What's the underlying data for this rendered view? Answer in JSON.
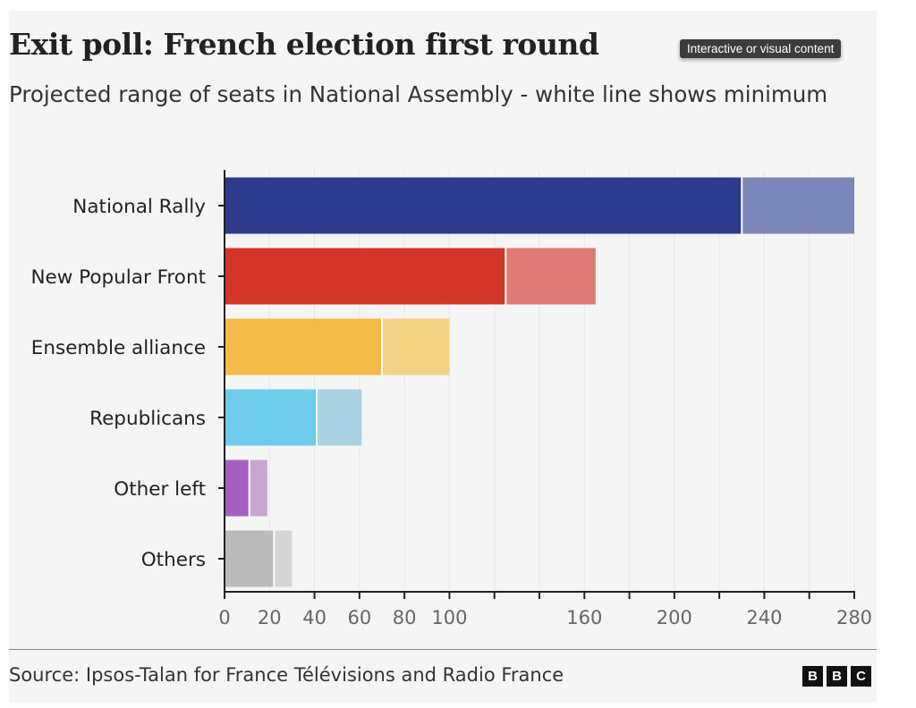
{
  "tooltip": "Interactive or visual content",
  "source": "Source: Ipsos-Talan for France Télévisions and Radio France",
  "logo": [
    "B",
    "B",
    "C"
  ],
  "chart_data": {
    "type": "bar",
    "orientation": "horizontal",
    "stacked_range": true,
    "title": "Exit poll: French election first round",
    "subtitle": "Projected range of seats in National Assembly - white line shows minimum",
    "categories": [
      "National Rally",
      "New Popular Front",
      "Ensemble alliance",
      "Republicans",
      "Other left",
      "Others"
    ],
    "series": [
      {
        "name": "minimum",
        "values": [
          230,
          125,
          70,
          41,
          11,
          22
        ]
      },
      {
        "name": "maximum",
        "values": [
          280,
          165,
          100,
          61,
          19,
          30
        ]
      }
    ],
    "colors_min": [
      "#2e3a8c",
      "#d23629",
      "#f4bb48",
      "#6fcbeb",
      "#a55fbf",
      "#bbbbbb"
    ],
    "colors_max": [
      "#7d86b8",
      "#e07a74",
      "#f4d283",
      "#a9d3e3",
      "#c9a5d2",
      "#d5d5d5"
    ],
    "xlim": [
      0,
      280
    ],
    "xticks": [
      0,
      20,
      40,
      60,
      80,
      100,
      120,
      140,
      160,
      180,
      200,
      220,
      240,
      260,
      280
    ],
    "xtick_labels": [
      "0",
      "20",
      "40",
      "60",
      "80",
      "100",
      "",
      "",
      "160",
      "",
      "200",
      "",
      "240",
      "",
      "280"
    ],
    "grid": true,
    "xlabel": "",
    "ylabel": ""
  }
}
